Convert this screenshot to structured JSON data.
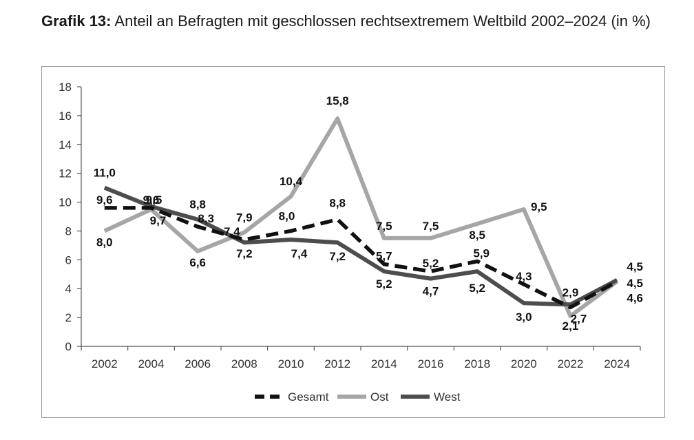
{
  "title": {
    "label": "Grafik 13:",
    "text": "Anteil an Befragten mit geschlossen rechtsextremem Weltbild 2002–2024 (in %)"
  },
  "colors": {
    "gesamt": "#111111",
    "ost": "#a6a6a6",
    "west": "#4d4d4d",
    "axis": "#555555",
    "frame": "#9a9a9a"
  },
  "chart_data": {
    "type": "line",
    "title": "Anteil an Befragten mit geschlossen rechtsextremem Weltbild 2002–2024 (in %)",
    "xlabel": "",
    "ylabel": "",
    "ylim": [
      0,
      18
    ],
    "yticks": [
      0,
      2,
      4,
      6,
      8,
      10,
      12,
      14,
      16,
      18
    ],
    "grid": false,
    "legend_position": "bottom",
    "x": [
      2002,
      2004,
      2006,
      2008,
      2010,
      2012,
      2014,
      2016,
      2018,
      2020,
      2022,
      2024
    ],
    "series": [
      {
        "name": "Gesamt",
        "style": "dashed",
        "values": [
          9.6,
          9.6,
          8.3,
          7.4,
          8.0,
          8.8,
          5.7,
          5.2,
          5.9,
          4.3,
          2.7,
          4.5
        ],
        "labels": [
          "9,6",
          "9,6",
          "8,3",
          "7,4",
          "8,0",
          "8,8",
          "5,7",
          "5,2",
          "5,9",
          "4,3",
          "2,7",
          "4,5"
        ]
      },
      {
        "name": "Ost",
        "style": "solid",
        "values": [
          8.0,
          9.5,
          6.6,
          7.9,
          10.4,
          15.8,
          7.5,
          7.5,
          8.5,
          9.5,
          2.1,
          4.5
        ],
        "labels": [
          "8,0",
          "9,5",
          "6,6",
          "7,9",
          "10,4",
          "15,8",
          "7,5",
          "7,5",
          "8,5",
          "9,5",
          "2,1",
          "4,5"
        ]
      },
      {
        "name": "West",
        "style": "solid",
        "values": [
          11.0,
          9.7,
          8.8,
          7.2,
          7.4,
          7.2,
          5.2,
          4.7,
          5.2,
          3.0,
          2.9,
          4.6
        ],
        "labels": [
          "11,0",
          "9,7",
          "8,8",
          "7,2",
          "7,4",
          "7,2",
          "5,2",
          "4,7",
          "5,2",
          "3,0",
          "2,9",
          "4,6"
        ]
      }
    ]
  }
}
